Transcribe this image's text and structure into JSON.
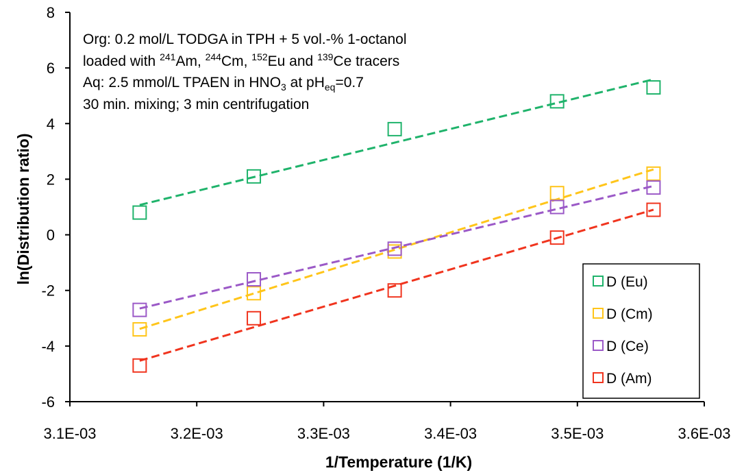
{
  "chart_data": {
    "type": "scatter",
    "xlabel": "1/Temperature (1/K)",
    "ylabel": "ln(Distribution ratio)",
    "xlim": [
      0.0031,
      0.0036
    ],
    "ylim": [
      -6,
      8
    ],
    "x_ticks": [
      0.0031,
      0.0032,
      0.0033,
      0.0034,
      0.0035,
      0.0036
    ],
    "x_tick_labels": [
      "3.1E-03",
      "3.2E-03",
      "3.3E-03",
      "3.4E-03",
      "3.5E-03",
      "3.6E-03"
    ],
    "y_ticks": [
      -6,
      -4,
      -2,
      0,
      2,
      4,
      6,
      8
    ],
    "y_tick_labels": [
      "-6",
      "-4",
      "-2",
      "0",
      "2",
      "4",
      "6",
      "8"
    ],
    "grid": false,
    "legend_position": "bottom-right",
    "trendlines": "linear, dashed",
    "series": [
      {
        "name": "D (Eu)",
        "color": "#1fb36b",
        "x": [
          0.003155,
          0.003245,
          0.003356,
          0.003484,
          0.00356
        ],
        "y": [
          0.8,
          2.1,
          3.8,
          4.8,
          5.3
        ]
      },
      {
        "name": "D (Cm)",
        "color": "#ffc51a",
        "x": [
          0.003155,
          0.003245,
          0.003356,
          0.003484,
          0.00356
        ],
        "y": [
          -3.4,
          -2.1,
          -0.6,
          1.5,
          2.2
        ]
      },
      {
        "name": "D (Ce)",
        "color": "#9b59c7",
        "x": [
          0.003155,
          0.003245,
          0.003356,
          0.003484,
          0.00356
        ],
        "y": [
          -2.7,
          -1.6,
          -0.5,
          1.0,
          1.7
        ]
      },
      {
        "name": "D (Am)",
        "color": "#f0341e",
        "x": [
          0.003155,
          0.003245,
          0.003356,
          0.003484,
          0.00356
        ],
        "y": [
          -4.7,
          -3.0,
          -2.0,
          -0.1,
          0.9
        ]
      }
    ],
    "annotation": [
      {
        "parts": [
          {
            "t": "Org: 0.2 mol/L TODGA in TPH + 5 vol.-% 1-octanol"
          }
        ]
      },
      {
        "parts": [
          {
            "t": "loaded with "
          },
          {
            "t": "241",
            "sup": true
          },
          {
            "t": "Am, "
          },
          {
            "t": "244",
            "sup": true
          },
          {
            "t": "Cm, "
          },
          {
            "t": "152",
            "sup": true
          },
          {
            "t": "Eu and "
          },
          {
            "t": "139",
            "sup": true
          },
          {
            "t": "Ce tracers"
          }
        ]
      },
      {
        "parts": [
          {
            "t": "Aq: 2.5 mmol/L TPAEN in HNO"
          },
          {
            "t": "3",
            "sub": true
          },
          {
            "t": " at pH"
          },
          {
            "t": "eq",
            "sub": true
          },
          {
            "t": "=0.7"
          }
        ]
      },
      {
        "parts": [
          {
            "t": "30 min. mixing; 3  min centrifugation"
          }
        ]
      }
    ]
  }
}
